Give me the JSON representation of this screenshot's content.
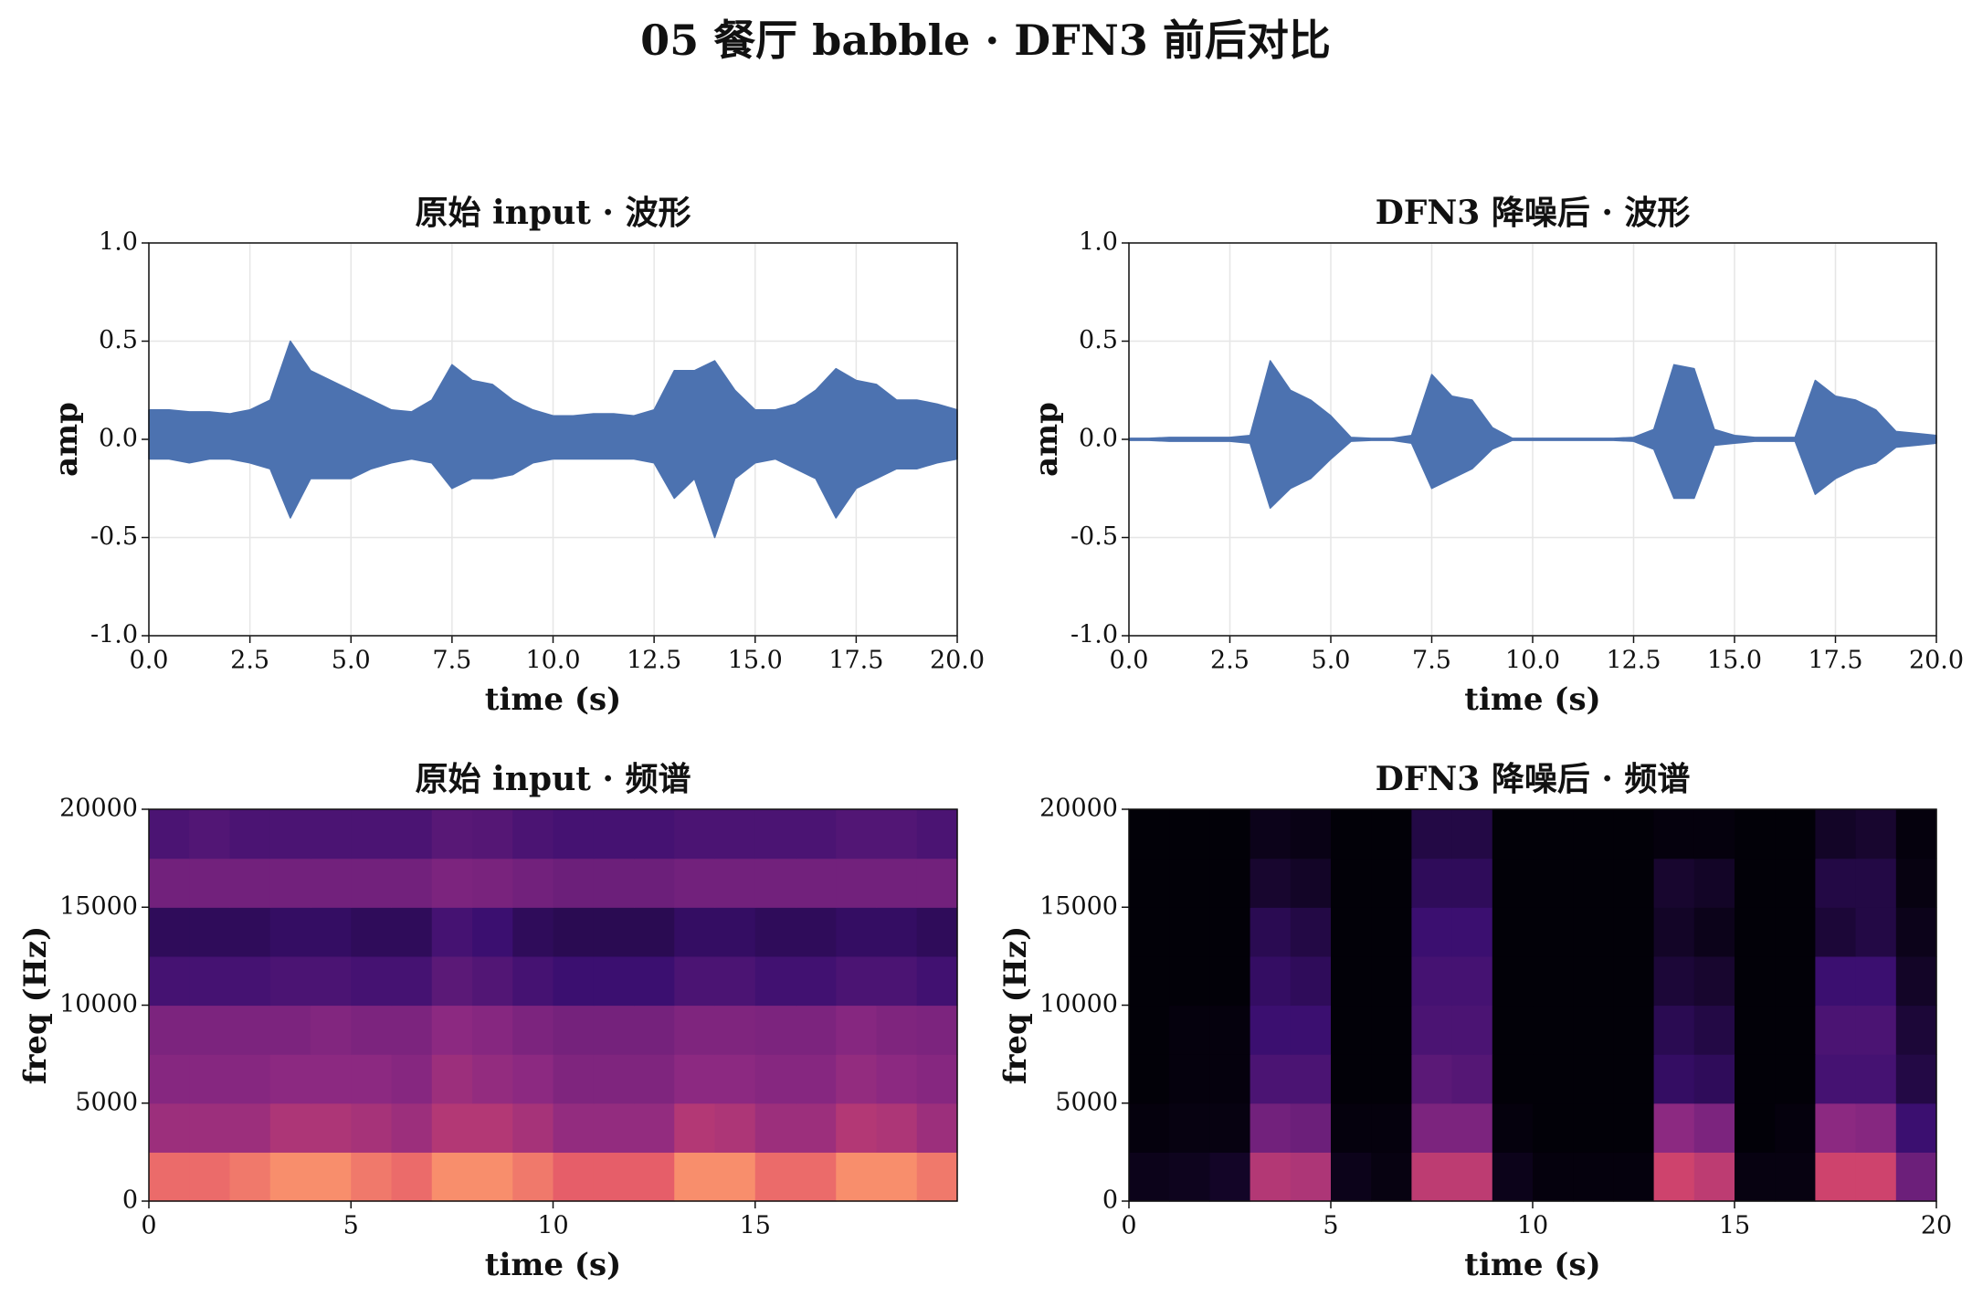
{
  "title": "05 餐厅 babble · DFN3 前后对比",
  "chart_data": [
    {
      "type": "waveform",
      "title": "原始 input · 波形",
      "xlabel": "time (s)",
      "ylabel": "amp",
      "color": "#4c72b0",
      "grid": true,
      "xlim": [
        0,
        20
      ],
      "xticks": [
        {
          "value": 0,
          "label": "0.0"
        },
        2.5,
        {
          "value": 5,
          "label": "5.0"
        },
        7.5,
        {
          "value": 10,
          "label": "10.0"
        },
        12.5,
        {
          "value": 15,
          "label": "15.0"
        },
        17.5,
        {
          "value": 20,
          "label": "20.0"
        }
      ],
      "ylim": [
        -1,
        1
      ],
      "yticks": [
        {
          "value": -1,
          "label": "-1.0"
        },
        -0.5,
        {
          "value": 0,
          "label": "0.0"
        },
        0.5,
        {
          "value": 1,
          "label": "1.0"
        }
      ],
      "x": [
        0,
        0.5,
        1,
        1.5,
        2,
        2.5,
        3,
        3.5,
        4,
        4.5,
        5,
        5.5,
        6,
        6.5,
        7,
        7.5,
        8,
        8.5,
        9,
        9.5,
        10,
        10.5,
        11,
        11.5,
        12,
        12.5,
        13,
        13.5,
        14,
        14.5,
        15,
        15.5,
        16,
        16.5,
        17,
        17.5,
        18,
        18.5,
        19,
        19.5,
        20
      ],
      "upper": [
        0.15,
        0.15,
        0.14,
        0.14,
        0.13,
        0.15,
        0.2,
        0.5,
        0.35,
        0.3,
        0.25,
        0.2,
        0.15,
        0.14,
        0.2,
        0.38,
        0.3,
        0.28,
        0.2,
        0.15,
        0.12,
        0.12,
        0.13,
        0.13,
        0.12,
        0.15,
        0.35,
        0.35,
        0.4,
        0.25,
        0.15,
        0.15,
        0.18,
        0.25,
        0.36,
        0.3,
        0.28,
        0.2,
        0.2,
        0.18,
        0.15
      ],
      "lower": [
        -0.1,
        -0.1,
        -0.12,
        -0.1,
        -0.1,
        -0.12,
        -0.15,
        -0.4,
        -0.2,
        -0.2,
        -0.2,
        -0.15,
        -0.12,
        -0.1,
        -0.12,
        -0.25,
        -0.2,
        -0.2,
        -0.18,
        -0.12,
        -0.1,
        -0.1,
        -0.1,
        -0.1,
        -0.1,
        -0.12,
        -0.3,
        -0.2,
        -0.5,
        -0.2,
        -0.12,
        -0.1,
        -0.15,
        -0.2,
        -0.4,
        -0.25,
        -0.2,
        -0.15,
        -0.15,
        -0.12,
        -0.1
      ]
    },
    {
      "type": "waveform",
      "title": "DFN3 降噪后 · 波形",
      "xlabel": "time (s)",
      "ylabel": "amp",
      "color": "#4c72b0",
      "grid": true,
      "xlim": [
        0,
        20
      ],
      "xticks": [
        {
          "value": 0,
          "label": "0.0"
        },
        2.5,
        {
          "value": 5,
          "label": "5.0"
        },
        7.5,
        {
          "value": 10,
          "label": "10.0"
        },
        12.5,
        {
          "value": 15,
          "label": "15.0"
        },
        17.5,
        {
          "value": 20,
          "label": "20.0"
        }
      ],
      "ylim": [
        -1,
        1
      ],
      "yticks": [
        {
          "value": -1,
          "label": "-1.0"
        },
        -0.5,
        {
          "value": 0,
          "label": "0.0"
        },
        0.5,
        {
          "value": 1,
          "label": "1.0"
        }
      ],
      "x": [
        0,
        0.5,
        1,
        1.5,
        2,
        2.5,
        3,
        3.5,
        4,
        4.5,
        5,
        5.5,
        6,
        6.5,
        7,
        7.5,
        8,
        8.5,
        9,
        9.5,
        10,
        10.5,
        11,
        11.5,
        12,
        12.5,
        13,
        13.5,
        14,
        14.5,
        15,
        15.5,
        16,
        16.5,
        17,
        17.5,
        18,
        18.5,
        19,
        19.5,
        20
      ],
      "upper": [
        0.005,
        0.005,
        0.01,
        0.01,
        0.01,
        0.01,
        0.02,
        0.4,
        0.25,
        0.2,
        0.12,
        0.01,
        0.005,
        0.005,
        0.02,
        0.33,
        0.22,
        0.2,
        0.06,
        0.005,
        0.005,
        0.005,
        0.005,
        0.005,
        0.005,
        0.01,
        0.05,
        0.38,
        0.36,
        0.05,
        0.02,
        0.01,
        0.01,
        0.01,
        0.3,
        0.22,
        0.2,
        0.15,
        0.04,
        0.03,
        0.02
      ],
      "lower": [
        -0.005,
        -0.005,
        -0.01,
        -0.01,
        -0.01,
        -0.01,
        -0.02,
        -0.35,
        -0.25,
        -0.2,
        -0.1,
        -0.01,
        -0.005,
        -0.005,
        -0.02,
        -0.25,
        -0.2,
        -0.15,
        -0.05,
        -0.005,
        -0.005,
        -0.005,
        -0.005,
        -0.005,
        -0.005,
        -0.01,
        -0.05,
        -0.3,
        -0.3,
        -0.03,
        -0.02,
        -0.01,
        -0.01,
        -0.01,
        -0.28,
        -0.2,
        -0.15,
        -0.12,
        -0.04,
        -0.03,
        -0.02
      ]
    },
    {
      "type": "heatmap",
      "title": "原始 input · 频谱",
      "xlabel": "time (s)",
      "ylabel": "freq (Hz)",
      "grid": false,
      "xlim": [
        0,
        20
      ],
      "xticks": [
        0,
        5,
        10,
        15
      ],
      "ylim": [
        0,
        20000
      ],
      "yticks": [
        0,
        5000,
        10000,
        15000,
        20000
      ],
      "z": [
        [
          0.8,
          0.8,
          0.82,
          0.85,
          0.85,
          0.82,
          0.8,
          0.85,
          0.85,
          0.82,
          0.78,
          0.78,
          0.78,
          0.85,
          0.85,
          0.8,
          0.8,
          0.85,
          0.85,
          0.82
        ],
        [
          0.55,
          0.55,
          0.55,
          0.6,
          0.6,
          0.58,
          0.55,
          0.62,
          0.62,
          0.58,
          0.52,
          0.52,
          0.52,
          0.62,
          0.6,
          0.55,
          0.55,
          0.62,
          0.6,
          0.55
        ],
        [
          0.48,
          0.48,
          0.48,
          0.5,
          0.5,
          0.5,
          0.48,
          0.55,
          0.52,
          0.5,
          0.46,
          0.46,
          0.46,
          0.5,
          0.5,
          0.48,
          0.48,
          0.52,
          0.5,
          0.48
        ],
        [
          0.45,
          0.45,
          0.45,
          0.45,
          0.47,
          0.45,
          0.45,
          0.5,
          0.48,
          0.45,
          0.43,
          0.43,
          0.43,
          0.46,
          0.46,
          0.45,
          0.45,
          0.48,
          0.46,
          0.45
        ],
        [
          0.28,
          0.28,
          0.28,
          0.3,
          0.3,
          0.28,
          0.28,
          0.35,
          0.32,
          0.28,
          0.25,
          0.25,
          0.25,
          0.3,
          0.3,
          0.27,
          0.27,
          0.3,
          0.3,
          0.27
        ],
        [
          0.2,
          0.2,
          0.2,
          0.22,
          0.22,
          0.2,
          0.2,
          0.28,
          0.25,
          0.2,
          0.18,
          0.18,
          0.18,
          0.22,
          0.22,
          0.2,
          0.2,
          0.22,
          0.22,
          0.2
        ],
        [
          0.42,
          0.42,
          0.42,
          0.42,
          0.42,
          0.42,
          0.42,
          0.45,
          0.44,
          0.42,
          0.4,
          0.4,
          0.4,
          0.42,
          0.42,
          0.42,
          0.42,
          0.42,
          0.42,
          0.42
        ],
        [
          0.3,
          0.32,
          0.3,
          0.3,
          0.3,
          0.3,
          0.3,
          0.34,
          0.33,
          0.3,
          0.28,
          0.28,
          0.28,
          0.3,
          0.3,
          0.3,
          0.3,
          0.32,
          0.32,
          0.3
        ]
      ]
    },
    {
      "type": "heatmap",
      "title": "DFN3 降噪后 · 频谱",
      "xlabel": "time (s)",
      "ylabel": "freq (Hz)",
      "grid": false,
      "xlim": [
        0,
        20
      ],
      "xticks": [
        0,
        5,
        10,
        15,
        20
      ],
      "ylim": [
        0,
        20000
      ],
      "yticks": [
        0,
        5000,
        10000,
        15000,
        20000
      ],
      "z": [
        [
          0.05,
          0.06,
          0.08,
          0.62,
          0.6,
          0.05,
          0.03,
          0.65,
          0.65,
          0.05,
          0.02,
          0.02,
          0.02,
          0.7,
          0.65,
          0.03,
          0.03,
          0.7,
          0.7,
          0.4
        ],
        [
          0.02,
          0.03,
          0.03,
          0.42,
          0.4,
          0.02,
          0.02,
          0.45,
          0.45,
          0.02,
          0.01,
          0.01,
          0.01,
          0.5,
          0.45,
          0.01,
          0.02,
          0.5,
          0.48,
          0.25
        ],
        [
          0.01,
          0.02,
          0.02,
          0.3,
          0.3,
          0.01,
          0.01,
          0.35,
          0.33,
          0.01,
          0.01,
          0.01,
          0.01,
          0.22,
          0.2,
          0.01,
          0.01,
          0.28,
          0.28,
          0.15
        ],
        [
          0.01,
          0.02,
          0.02,
          0.25,
          0.25,
          0.01,
          0.01,
          0.3,
          0.3,
          0.01,
          0.01,
          0.01,
          0.01,
          0.18,
          0.15,
          0.01,
          0.01,
          0.3,
          0.3,
          0.12
        ],
        [
          0.01,
          0.01,
          0.01,
          0.22,
          0.2,
          0.01,
          0.01,
          0.28,
          0.28,
          0.01,
          0.01,
          0.01,
          0.01,
          0.12,
          0.1,
          0.01,
          0.01,
          0.25,
          0.25,
          0.08
        ],
        [
          0.01,
          0.01,
          0.01,
          0.18,
          0.15,
          0.01,
          0.01,
          0.25,
          0.25,
          0.01,
          0.01,
          0.01,
          0.01,
          0.08,
          0.05,
          0.01,
          0.01,
          0.12,
          0.15,
          0.05
        ],
        [
          0.01,
          0.01,
          0.01,
          0.1,
          0.08,
          0.01,
          0.01,
          0.2,
          0.2,
          0.01,
          0.01,
          0.01,
          0.01,
          0.1,
          0.08,
          0.01,
          0.01,
          0.15,
          0.15,
          0.03
        ],
        [
          0.01,
          0.01,
          0.01,
          0.05,
          0.04,
          0.01,
          0.01,
          0.15,
          0.15,
          0.01,
          0.01,
          0.01,
          0.01,
          0.02,
          0.02,
          0.01,
          0.01,
          0.08,
          0.1,
          0.02
        ]
      ]
    }
  ]
}
